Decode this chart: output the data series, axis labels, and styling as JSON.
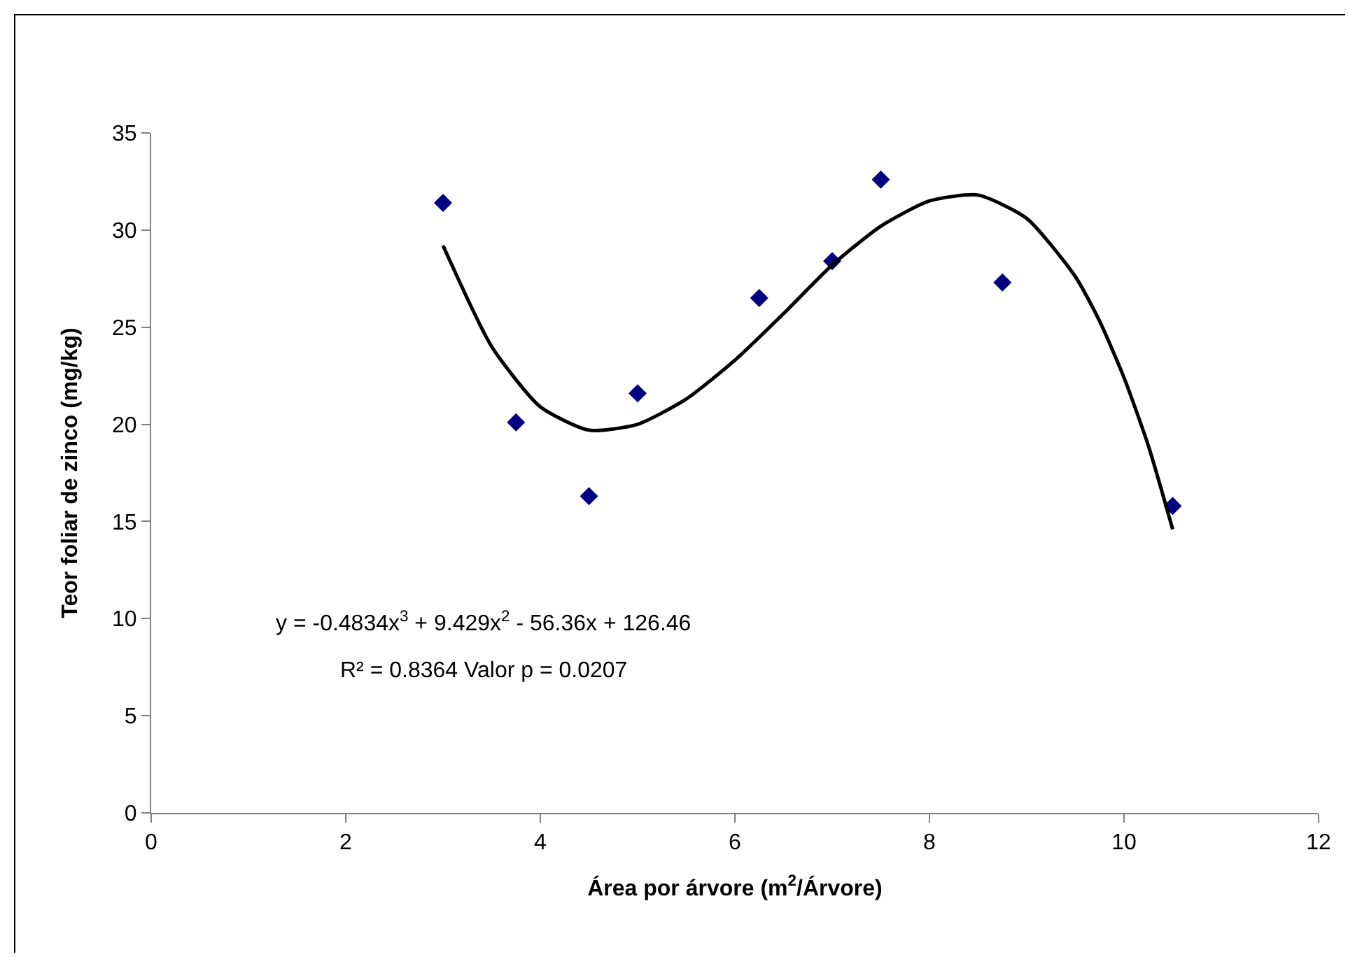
{
  "chart_data": {
    "type": "scatter",
    "xlabel": "Área por árvore (m$^{2}$/Árvore)",
    "ylabel": "Teor foliar de zinco (mg/kg)",
    "annotations": [
      "y = -0.4834x$^{3}$ + 9.429x$^{2}$ - 56.36x + 126.46",
      "R² = 0.8364 Valor p = 0.0207"
    ],
    "xlim": [
      0,
      12
    ],
    "xticks": [
      0,
      2,
      4,
      6,
      8,
      10,
      12
    ],
    "ylim": [
      0,
      35
    ],
    "yticks": [
      0,
      5,
      10,
      15,
      20,
      25,
      30,
      35
    ],
    "grid": false,
    "series": [
      {
        "marker": "diamond",
        "color": "#000080",
        "x": [
          3,
          3.75,
          4.5,
          5,
          6.25,
          7,
          7.5,
          8.75,
          10.5
        ],
        "values": [
          31.4,
          20.1,
          16.3,
          21.6,
          26.5,
          28.4,
          32.6,
          27.3,
          15.8
        ]
      },
      {
        "type": "line",
        "color": "#000000",
        "line_style": "solid",
        "x": [
          3,
          3.5,
          4,
          4.5,
          5,
          5.5,
          6,
          6.5,
          7,
          7.5,
          8,
          8.5,
          9,
          9.5,
          9.75,
          10,
          10.25,
          10.5
        ],
        "values": [
          29.2,
          24,
          20.9,
          19.7,
          20,
          21.3,
          23.3,
          25.7,
          28.2,
          30.2,
          31.5,
          31.8,
          30.6,
          27.6,
          25.3,
          22.4,
          18.9,
          14.6
        ]
      }
    ]
  }
}
